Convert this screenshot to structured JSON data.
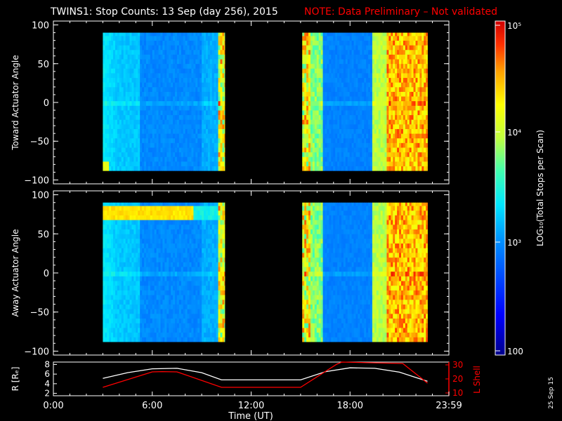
{
  "header": {
    "title": "TWINS1: Stop Counts: 13 Sep (day 256), 2015",
    "note": "NOTE: Data Preliminary – Not validated",
    "note_color": "#ff0000"
  },
  "chart_data": [
    {
      "type": "heatmap",
      "name": "toward",
      "ylabel": "Toward Actuator Angle",
      "ylim": [
        -105,
        105
      ],
      "yticks": [
        100,
        50,
        0,
        -50,
        -100
      ],
      "ytick_labels": [
        "100",
        "50",
        "0",
        "−50",
        "−100"
      ],
      "xlim_hours": [
        0,
        24
      ],
      "data_hours": [
        [
          3.0,
          10.4
        ],
        [
          15.1,
          22.7
        ]
      ],
      "angle_range": [
        -88,
        90
      ]
    },
    {
      "type": "heatmap",
      "name": "away",
      "ylabel": "Away Actuator Angle",
      "ylim": [
        -105,
        105
      ],
      "yticks": [
        100,
        50,
        0,
        -50,
        -100
      ],
      "ytick_labels": [
        "100",
        "50",
        "0",
        "−50",
        "−100"
      ],
      "xlim_hours": [
        0,
        24
      ],
      "data_hours": [
        [
          3.0,
          10.4
        ],
        [
          15.1,
          22.7
        ]
      ],
      "angle_range": [
        -88,
        90
      ]
    },
    {
      "type": "line",
      "name": "ephemeris",
      "ylabel_left": "R [Rₑ]",
      "ylabel_right": "L Shell",
      "ylim_left": [
        1.5,
        8.5
      ],
      "ylim_right": [
        8,
        32
      ],
      "yticks_left": [
        "8",
        "6",
        "4",
        "2"
      ],
      "yticks_right": [
        "30",
        "20",
        "10"
      ],
      "series": [
        {
          "name": "R",
          "color": "#ffffff",
          "axis": "left",
          "x": [
            3.0,
            4.5,
            6.0,
            7.5,
            9.0,
            10.2,
            15.0,
            16.5,
            18.0,
            19.5,
            21.0,
            22.7
          ],
          "y": [
            5.1,
            6.3,
            7.1,
            7.2,
            6.3,
            4.8,
            4.8,
            6.5,
            7.3,
            7.2,
            6.4,
            4.5
          ]
        },
        {
          "name": "L Shell",
          "color": "#ff0000",
          "axis": "right",
          "x": [
            3.0,
            6.0,
            6.6,
            7.5,
            10.2,
            15.0,
            17.2,
            17.5,
            21.2,
            22.7
          ],
          "y": [
            14,
            25,
            25.2,
            25,
            14,
            14,
            30.5,
            32,
            31,
            17
          ]
        }
      ]
    }
  ],
  "x_axis": {
    "ticks": [
      0,
      6,
      12,
      18,
      24
    ],
    "tick_labels": [
      "0:00",
      "6:00",
      "12:00",
      "18:00",
      "23:59"
    ],
    "label": "Time (UT)"
  },
  "colorbar": {
    "label": "LOG₁₀(Total Stops per Scan)",
    "ticks": [
      "10⁵",
      "10⁴",
      "10³",
      "100"
    ]
  },
  "footer": {
    "date": "25 Sep 15"
  }
}
